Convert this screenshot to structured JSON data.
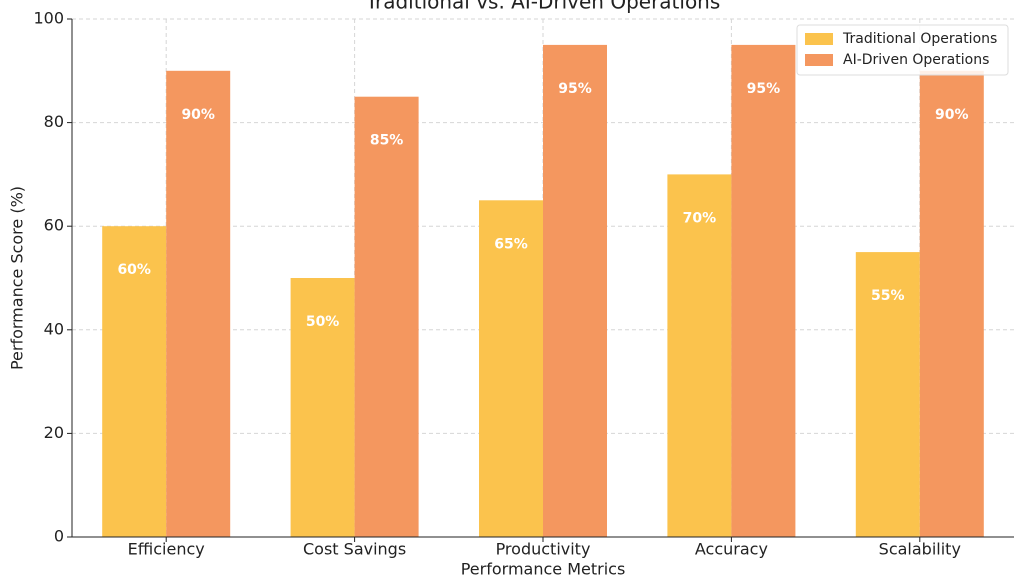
{
  "chart_data": {
    "type": "bar",
    "title": "Traditional vs. AI-Driven Operations",
    "x_label": "Performance Metrics",
    "y_label": "Performance Score (%)",
    "categories": [
      "Efficiency",
      "Cost Savings",
      "Productivity",
      "Accuracy",
      "Scalability"
    ],
    "series": [
      {
        "name": "Traditional Operations",
        "color": "#fbc34d",
        "values": [
          60,
          50,
          65,
          70,
          55
        ],
        "value_labels": [
          "60%",
          "50%",
          "65%",
          "70%",
          "55%"
        ]
      },
      {
        "name": "AI-Driven Operations",
        "color": "#f4975f",
        "values": [
          90,
          85,
          95,
          95,
          90
        ],
        "value_labels": [
          "90%",
          "85%",
          "95%",
          "95%",
          "90%"
        ]
      }
    ],
    "ylim": [
      0,
      100
    ],
    "yticks": [
      0,
      20,
      40,
      60,
      80,
      100
    ],
    "grid": true,
    "legend": "upper right"
  }
}
